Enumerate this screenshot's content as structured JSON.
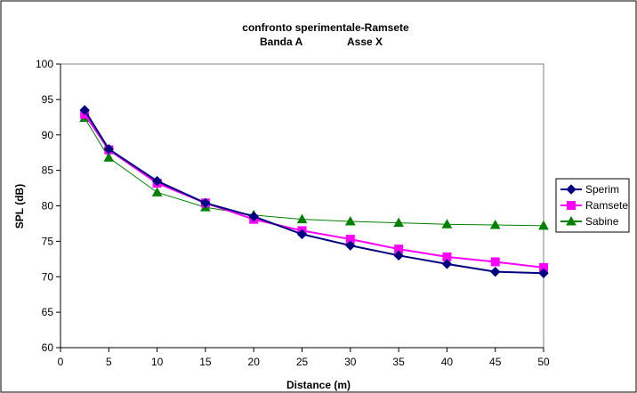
{
  "chart_data": {
    "type": "line",
    "title_line1": "confronto sperimentale-Ramsete",
    "title_line2_left": "Banda  A",
    "title_line2_right": "Asse X",
    "xlabel": "Distance (m)",
    "ylabel": "SPL (dB)",
    "xlim": [
      0,
      50
    ],
    "ylim": [
      60,
      100
    ],
    "x_ticks": [
      0,
      5,
      10,
      15,
      20,
      25,
      30,
      35,
      40,
      45,
      50
    ],
    "y_ticks": [
      60,
      65,
      70,
      75,
      80,
      85,
      90,
      95,
      100
    ],
    "grid": false,
    "legend_position": "right",
    "x": [
      2.5,
      5,
      10,
      15,
      20,
      25,
      30,
      35,
      40,
      45,
      50
    ],
    "series": [
      {
        "name": "Sperim",
        "color": "#000080",
        "marker": "diamond",
        "values": [
          93.5,
          88.0,
          83.5,
          80.4,
          78.5,
          76.0,
          74.4,
          73.0,
          71.8,
          70.7,
          70.5
        ]
      },
      {
        "name": "Ramsete",
        "color": "#FF00FF",
        "marker": "square",
        "values": [
          92.9,
          87.9,
          83.2,
          80.4,
          78.1,
          76.5,
          75.3,
          73.9,
          72.8,
          72.1,
          71.3
        ]
      },
      {
        "name": "Sabine",
        "color": "#008000",
        "marker": "triangle",
        "values": [
          92.4,
          86.8,
          81.9,
          79.8,
          78.7,
          78.1,
          77.8,
          77.6,
          77.4,
          77.3,
          77.2
        ]
      }
    ]
  }
}
